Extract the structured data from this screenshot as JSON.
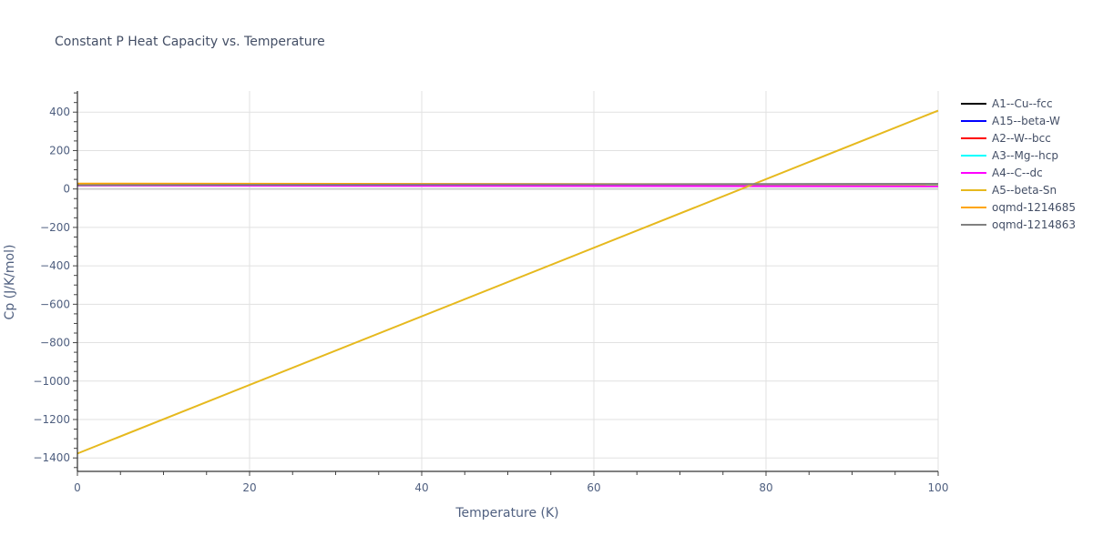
{
  "chart_data": {
    "type": "line",
    "title": "Constant P Heat Capacity vs. Temperature",
    "xlabel": "Temperature (K)",
    "ylabel": "Cp (J/K/mol)",
    "xlim": [
      0,
      100
    ],
    "ylim": [
      -1470,
      510
    ],
    "xticks": [
      0,
      20,
      40,
      60,
      80,
      100
    ],
    "yticks": [
      -1400,
      -1200,
      -1000,
      -800,
      -600,
      -400,
      -200,
      0,
      200,
      400
    ],
    "ytick_labels": [
      "−1400",
      "−1200",
      "−1000",
      "−800",
      "−600",
      "−400",
      "−200",
      "0",
      "200",
      "400"
    ],
    "grid": true,
    "legend_position": "right",
    "series": [
      {
        "name": "A1--Cu--fcc",
        "color": "#000000",
        "x": [
          0,
          100
        ],
        "y": [
          24,
          24
        ]
      },
      {
        "name": "A15--beta-W",
        "color": "#0000ff",
        "x": [
          0,
          100
        ],
        "y": [
          22,
          22
        ]
      },
      {
        "name": "A2--W--bcc",
        "color": "#ff0000",
        "x": [
          0,
          100
        ],
        "y": [
          22,
          21
        ]
      },
      {
        "name": "A3--Mg--hcp",
        "color": "#00ffff",
        "x": [
          0,
          100
        ],
        "y": [
          20,
          20
        ]
      },
      {
        "name": "A4--C--dc",
        "color": "#ff00ff",
        "x": [
          0,
          100
        ],
        "y": [
          18,
          14
        ]
      },
      {
        "name": "A5--beta-Sn",
        "color": "#e6b91e",
        "x": [
          0,
          100
        ],
        "y": [
          -1377,
          408
        ]
      },
      {
        "name": "oqmd-1214685",
        "color": "#ffa500",
        "x": [
          0,
          100
        ],
        "y": [
          28,
          24
        ]
      },
      {
        "name": "oqmd-1214863",
        "color": "#808080",
        "x": [
          0,
          100
        ],
        "y": [
          20,
          27
        ]
      }
    ]
  }
}
